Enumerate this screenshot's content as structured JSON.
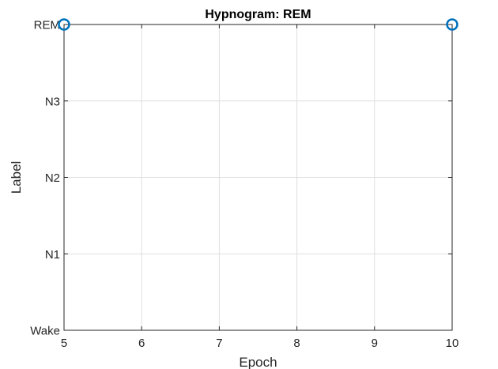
{
  "chart_data": {
    "type": "scatter",
    "title": "Hypnogram: REM",
    "xlabel": "Epoch",
    "ylabel": "Label",
    "xlim": [
      5,
      10
    ],
    "ylim": [
      0,
      4
    ],
    "x_ticks": [
      5,
      6,
      7,
      8,
      9,
      10
    ],
    "y_ticks": [
      {
        "value": 0,
        "label": "Wake"
      },
      {
        "value": 1,
        "label": "N1"
      },
      {
        "value": 2,
        "label": "N2"
      },
      {
        "value": 3,
        "label": "N3"
      },
      {
        "value": 4,
        "label": "REM"
      }
    ],
    "grid": true,
    "series": [
      {
        "x": [
          5,
          10
        ],
        "y": [
          4,
          4
        ],
        "marker": "circle",
        "color": "#0072BD"
      }
    ]
  }
}
